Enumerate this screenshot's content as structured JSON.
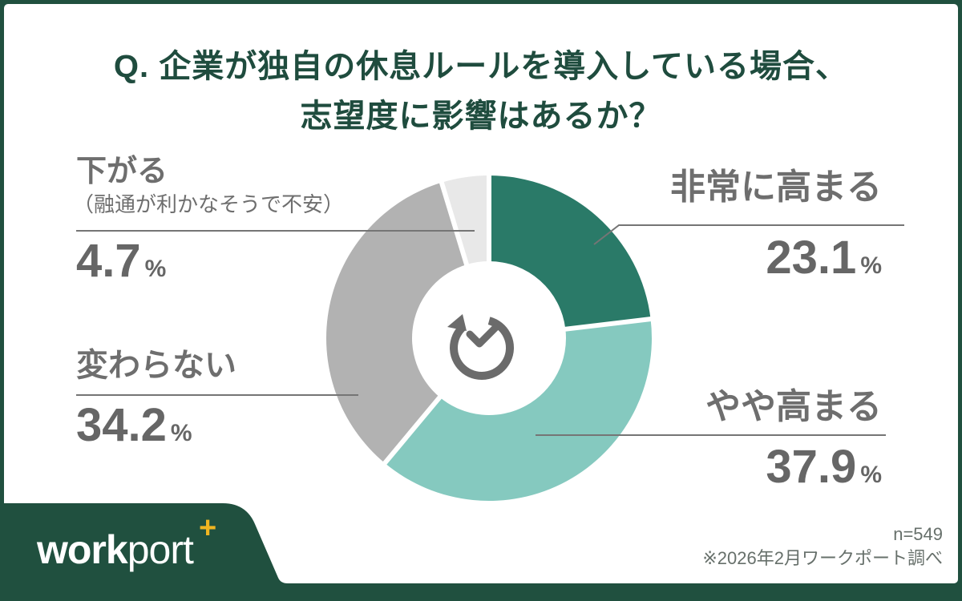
{
  "title": {
    "line1": "Q. 企業が独自の休息ルールを導入している場合、",
    "line2": "志望度に影響はあるか？"
  },
  "chart_data": {
    "type": "pie",
    "subtype": "donut",
    "start_angle": "top",
    "direction": "clockwise",
    "unit": "%",
    "center_icon": "history-clock-icon",
    "segments": [
      {
        "label": "非常に高まる",
        "value": 23.1,
        "color": "#2A7A68"
      },
      {
        "label": "やや高まる",
        "value": 37.9,
        "color": "#85C9BF"
      },
      {
        "label": "変わらない",
        "value": 34.2,
        "color": "#B2B2B2"
      },
      {
        "label": "下がる",
        "note": "（融通が利かなそうで不安）",
        "value": 4.7,
        "color": "#E8E8E8"
      }
    ]
  },
  "footer": {
    "logo_bold": "work",
    "logo_light": "por",
    "logo_t": "t",
    "logo_plus": "+",
    "sample_size": "n=549",
    "source_note": "※2026年2月ワークポート調べ"
  },
  "colors": {
    "brand_green": "#20503F",
    "title_green": "#1F4C3E",
    "label_text": "#6E6E6E",
    "leader_line": "#757575",
    "logo_plus_gold": "#F0B521"
  }
}
